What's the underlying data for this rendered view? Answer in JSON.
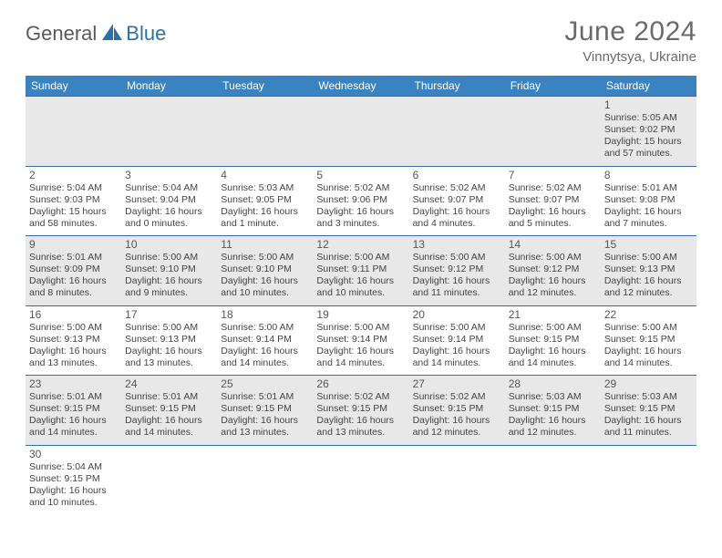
{
  "logo": {
    "text1": "General",
    "text2": "Blue"
  },
  "header": {
    "month": "June 2024",
    "location": "Vinnytsya, Ukraine"
  },
  "colors": {
    "header_bg": "#3b83c0",
    "header_text": "#ffffff",
    "row_odd_bg": "#e8e8e8",
    "row_even_bg": "#ffffff",
    "border": "#2f6fa7",
    "logo_gray": "#5a5a5a",
    "logo_blue": "#2f6fa7",
    "title_gray": "#6a6a6a"
  },
  "weekdays": [
    "Sunday",
    "Monday",
    "Tuesday",
    "Wednesday",
    "Thursday",
    "Friday",
    "Saturday"
  ],
  "cells": [
    [
      null,
      null,
      null,
      null,
      null,
      null,
      {
        "d": "1",
        "r": "5:05 AM",
        "s": "9:02 PM",
        "dl": "15 hours and 57 minutes."
      }
    ],
    [
      {
        "d": "2",
        "r": "5:04 AM",
        "s": "9:03 PM",
        "dl": "15 hours and 58 minutes."
      },
      {
        "d": "3",
        "r": "5:04 AM",
        "s": "9:04 PM",
        "dl": "16 hours and 0 minutes."
      },
      {
        "d": "4",
        "r": "5:03 AM",
        "s": "9:05 PM",
        "dl": "16 hours and 1 minute."
      },
      {
        "d": "5",
        "r": "5:02 AM",
        "s": "9:06 PM",
        "dl": "16 hours and 3 minutes."
      },
      {
        "d": "6",
        "r": "5:02 AM",
        "s": "9:07 PM",
        "dl": "16 hours and 4 minutes."
      },
      {
        "d": "7",
        "r": "5:02 AM",
        "s": "9:07 PM",
        "dl": "16 hours and 5 minutes."
      },
      {
        "d": "8",
        "r": "5:01 AM",
        "s": "9:08 PM",
        "dl": "16 hours and 7 minutes."
      }
    ],
    [
      {
        "d": "9",
        "r": "5:01 AM",
        "s": "9:09 PM",
        "dl": "16 hours and 8 minutes."
      },
      {
        "d": "10",
        "r": "5:00 AM",
        "s": "9:10 PM",
        "dl": "16 hours and 9 minutes."
      },
      {
        "d": "11",
        "r": "5:00 AM",
        "s": "9:10 PM",
        "dl": "16 hours and 10 minutes."
      },
      {
        "d": "12",
        "r": "5:00 AM",
        "s": "9:11 PM",
        "dl": "16 hours and 10 minutes."
      },
      {
        "d": "13",
        "r": "5:00 AM",
        "s": "9:12 PM",
        "dl": "16 hours and 11 minutes."
      },
      {
        "d": "14",
        "r": "5:00 AM",
        "s": "9:12 PM",
        "dl": "16 hours and 12 minutes."
      },
      {
        "d": "15",
        "r": "5:00 AM",
        "s": "9:13 PM",
        "dl": "16 hours and 12 minutes."
      }
    ],
    [
      {
        "d": "16",
        "r": "5:00 AM",
        "s": "9:13 PM",
        "dl": "16 hours and 13 minutes."
      },
      {
        "d": "17",
        "r": "5:00 AM",
        "s": "9:13 PM",
        "dl": "16 hours and 13 minutes."
      },
      {
        "d": "18",
        "r": "5:00 AM",
        "s": "9:14 PM",
        "dl": "16 hours and 14 minutes."
      },
      {
        "d": "19",
        "r": "5:00 AM",
        "s": "9:14 PM",
        "dl": "16 hours and 14 minutes."
      },
      {
        "d": "20",
        "r": "5:00 AM",
        "s": "9:14 PM",
        "dl": "16 hours and 14 minutes."
      },
      {
        "d": "21",
        "r": "5:00 AM",
        "s": "9:15 PM",
        "dl": "16 hours and 14 minutes."
      },
      {
        "d": "22",
        "r": "5:00 AM",
        "s": "9:15 PM",
        "dl": "16 hours and 14 minutes."
      }
    ],
    [
      {
        "d": "23",
        "r": "5:01 AM",
        "s": "9:15 PM",
        "dl": "16 hours and 14 minutes."
      },
      {
        "d": "24",
        "r": "5:01 AM",
        "s": "9:15 PM",
        "dl": "16 hours and 14 minutes."
      },
      {
        "d": "25",
        "r": "5:01 AM",
        "s": "9:15 PM",
        "dl": "16 hours and 13 minutes."
      },
      {
        "d": "26",
        "r": "5:02 AM",
        "s": "9:15 PM",
        "dl": "16 hours and 13 minutes."
      },
      {
        "d": "27",
        "r": "5:02 AM",
        "s": "9:15 PM",
        "dl": "16 hours and 12 minutes."
      },
      {
        "d": "28",
        "r": "5:03 AM",
        "s": "9:15 PM",
        "dl": "16 hours and 12 minutes."
      },
      {
        "d": "29",
        "r": "5:03 AM",
        "s": "9:15 PM",
        "dl": "16 hours and 11 minutes."
      }
    ],
    [
      {
        "d": "30",
        "r": "5:04 AM",
        "s": "9:15 PM",
        "dl": "16 hours and 10 minutes."
      },
      null,
      null,
      null,
      null,
      null,
      null
    ]
  ],
  "labels": {
    "sunrise": "Sunrise:",
    "sunset": "Sunset:",
    "daylight": "Daylight:"
  }
}
